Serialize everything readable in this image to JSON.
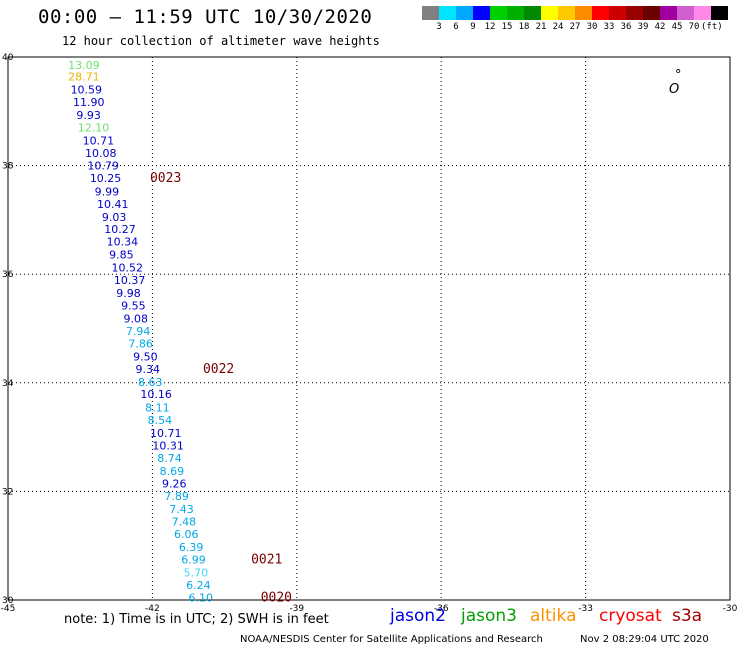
{
  "header": {
    "title": "00:00 – 11:59 UTC 10/30/2020",
    "subtitle": "12 hour collection of altimeter wave heights"
  },
  "colorbar": {
    "colors": [
      "#808080",
      "#00e5ff",
      "#00a8ff",
      "#0000ff",
      "#00d000",
      "#00b000",
      "#008800",
      "#ffff00",
      "#ffc800",
      "#ff8c00",
      "#ff0000",
      "#cc0000",
      "#990000",
      "#6b0000",
      "#a000a0",
      "#d060d0",
      "#ff88e8",
      "#000000"
    ],
    "labels": [
      "3",
      "6",
      "9",
      "12",
      "15",
      "18",
      "21",
      "24",
      "27",
      "30",
      "33",
      "36",
      "39",
      "42",
      "45",
      "70",
      "(ft)"
    ]
  },
  "chart_data": {
    "type": "scatter",
    "title": "12 hour collection of altimeter wave heights",
    "x_axis": {
      "ticks": [
        "-45",
        "-42",
        "-39",
        "-36",
        "-33",
        "-30"
      ],
      "range": [
        -45,
        -30
      ]
    },
    "y_axis": {
      "ticks": [
        "40",
        "38",
        "36",
        "34",
        "32",
        "30"
      ],
      "range": [
        30,
        40
      ]
    },
    "grid": true,
    "points": [
      {
        "lon": -43.75,
        "lat": 39.78,
        "swh": "13.09",
        "color": "#6ee06e"
      },
      {
        "lon": -43.75,
        "lat": 39.57,
        "swh": "28.71",
        "color": "#f0b400"
      },
      {
        "lon": -43.7,
        "lat": 39.33,
        "swh": "10.59",
        "color": "#0000c8"
      },
      {
        "lon": -43.65,
        "lat": 39.1,
        "swh": "11.90",
        "color": "#0000c8"
      },
      {
        "lon": -43.58,
        "lat": 38.86,
        "swh": "9.93",
        "color": "#0000c8"
      },
      {
        "lon": -43.55,
        "lat": 38.63,
        "swh": "12.10",
        "color": "#6ee06e"
      },
      {
        "lon": -43.45,
        "lat": 38.39,
        "swh": "10.71",
        "color": "#0000c8"
      },
      {
        "lon": -43.4,
        "lat": 38.16,
        "swh": "10.08",
        "color": "#0000c8"
      },
      {
        "lon": -43.35,
        "lat": 37.93,
        "swh": "10.79",
        "color": "#0000c8"
      },
      {
        "lon": -43.3,
        "lat": 37.7,
        "swh": "10.25",
        "color": "#0000c8"
      },
      {
        "lon": -43.2,
        "lat": 37.45,
        "swh": "9.99",
        "color": "#0000c8"
      },
      {
        "lon": -43.15,
        "lat": 37.22,
        "swh": "10.41",
        "color": "#0000c8"
      },
      {
        "lon": -43.05,
        "lat": 36.98,
        "swh": "9.03",
        "color": "#0000c8"
      },
      {
        "lon": -43.0,
        "lat": 36.76,
        "swh": "10.27",
        "color": "#0000c8"
      },
      {
        "lon": -42.95,
        "lat": 36.53,
        "swh": "10.34",
        "color": "#0000c8"
      },
      {
        "lon": -42.9,
        "lat": 36.29,
        "swh": "9.85",
        "color": "#0000c8"
      },
      {
        "lon": -42.85,
        "lat": 36.05,
        "swh": "10.52",
        "color": "#0000c8"
      },
      {
        "lon": -42.8,
        "lat": 35.82,
        "swh": "10.37",
        "color": "#0000c8"
      },
      {
        "lon": -42.75,
        "lat": 35.58,
        "swh": "9.98",
        "color": "#0000c8"
      },
      {
        "lon": -42.65,
        "lat": 35.35,
        "swh": "9.55",
        "color": "#0000c8"
      },
      {
        "lon": -42.6,
        "lat": 35.11,
        "swh": "9.08",
        "color": "#0000c8"
      },
      {
        "lon": -42.55,
        "lat": 34.88,
        "swh": "7.94",
        "color": "#00a8e8"
      },
      {
        "lon": -42.5,
        "lat": 34.65,
        "swh": "7.86",
        "color": "#00a8e8"
      },
      {
        "lon": -42.4,
        "lat": 34.41,
        "swh": "9.50",
        "color": "#0000c8"
      },
      {
        "lon": -42.35,
        "lat": 34.18,
        "swh": "9.34",
        "color": "#0000c8"
      },
      {
        "lon": -42.3,
        "lat": 33.94,
        "swh": "8.63",
        "color": "#00a8e8"
      },
      {
        "lon": -42.25,
        "lat": 33.72,
        "swh": "10.16",
        "color": "#0000c8"
      },
      {
        "lon": -42.15,
        "lat": 33.47,
        "swh": "8.11",
        "color": "#00a8e8"
      },
      {
        "lon": -42.1,
        "lat": 33.24,
        "swh": "8.54",
        "color": "#00a8e8"
      },
      {
        "lon": -42.05,
        "lat": 33.0,
        "swh": "10.71",
        "color": "#0000c8"
      },
      {
        "lon": -42.0,
        "lat": 32.77,
        "swh": "10.31",
        "color": "#0000c8"
      },
      {
        "lon": -41.9,
        "lat": 32.54,
        "swh": "8.74",
        "color": "#00a8e8"
      },
      {
        "lon": -41.85,
        "lat": 32.3,
        "swh": "8.69",
        "color": "#00a8e8"
      },
      {
        "lon": -41.8,
        "lat": 32.07,
        "swh": "9.26",
        "color": "#0000c8"
      },
      {
        "lon": -41.75,
        "lat": 31.84,
        "swh": "7.89",
        "color": "#00a8e8"
      },
      {
        "lon": -41.65,
        "lat": 31.6,
        "swh": "7.43",
        "color": "#00a8e8"
      },
      {
        "lon": -41.6,
        "lat": 31.37,
        "swh": "7.48",
        "color": "#00a8e8"
      },
      {
        "lon": -41.55,
        "lat": 31.14,
        "swh": "6.06",
        "color": "#00a8e8"
      },
      {
        "lon": -41.45,
        "lat": 30.9,
        "swh": "6.39",
        "color": "#00a8e8"
      },
      {
        "lon": -41.4,
        "lat": 30.67,
        "swh": "6.99",
        "color": "#00a8e8"
      },
      {
        "lon": -41.35,
        "lat": 30.43,
        "swh": "5.70",
        "color": "#40d8f8"
      },
      {
        "lon": -41.3,
        "lat": 30.2,
        "swh": "6.24",
        "color": "#00a8e8"
      },
      {
        "lon": -41.25,
        "lat": 29.97,
        "swh": "6.10",
        "color": "#00a8e8"
      }
    ],
    "pass_labels": [
      {
        "text": "0023",
        "lon": -42.05,
        "lat": 37.7
      },
      {
        "text": "0022",
        "lon": -40.95,
        "lat": 34.18
      },
      {
        "text": "0021",
        "lon": -39.95,
        "lat": 30.67
      },
      {
        "text": "0020",
        "lon": -39.75,
        "lat": 29.97
      }
    ]
  },
  "island_labels": [
    "°",
    "O"
  ],
  "footer": {
    "note": "note: 1) Time is in UTC; 2) SWH is in feet",
    "satellites": [
      {
        "name": "jason2",
        "color": "#0000e0"
      },
      {
        "name": "jason3",
        "color": "#00a000"
      },
      {
        "name": "altika",
        "color": "#ff9000"
      },
      {
        "name": "cryosat",
        "color": "#ff0000"
      },
      {
        "name": "s3a",
        "color": "#a00000"
      }
    ],
    "credit": "NOAA/NESDIS Center for Satellite Applications and Research",
    "timestamp": "Nov  2 08:29:04 UTC 2020"
  }
}
